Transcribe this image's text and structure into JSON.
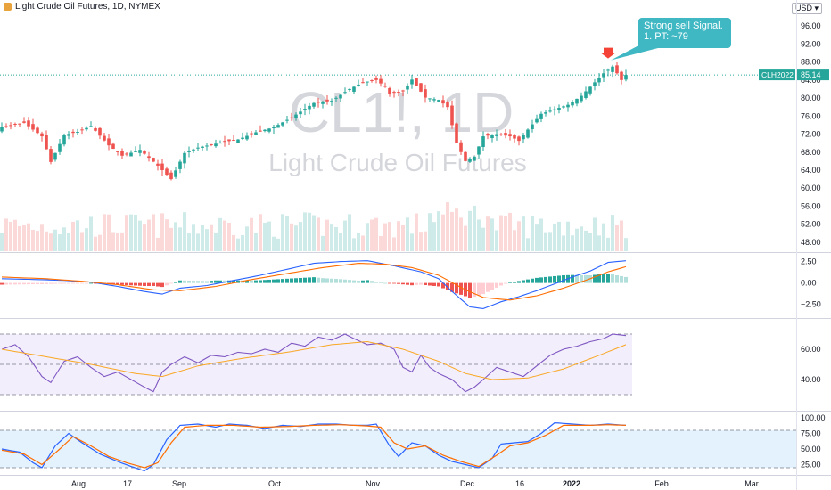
{
  "header": {
    "symbol_title": "Light Crude Oil Futures, 1D, NYMEX",
    "currency": "USD"
  },
  "watermark": {
    "ticker": "CL1!, 1D",
    "name": "Light Crude Oil Futures"
  },
  "annotation": {
    "line1": "Strong sell Signal.",
    "line2": "1. PT: ~79"
  },
  "price_tags": {
    "contract": "CLH2022",
    "last": "85.14"
  },
  "colors": {
    "up": "#26a69a",
    "down": "#ef5350",
    "up_dark": "#131722",
    "macd_line": "#2962ff",
    "signal_line": "#ff6d00",
    "rsi_line": "#7e57c2",
    "rsi_ma": "#f9a825",
    "rsi_band": "#f3eefc",
    "stoch_band": "#e3f2fd",
    "callout": "#3fb8c4",
    "arrow": "#f44336"
  },
  "chart_data": {
    "type": "candlestick",
    "price_axis": {
      "ticks": [
        "96.00",
        "92.00",
        "88.00",
        "84.00",
        "80.00",
        "76.00",
        "72.00",
        "68.00",
        "64.00",
        "60.00",
        "56.00",
        "52.00",
        "48.00"
      ],
      "range": [
        46,
        99
      ]
    },
    "macd_axis": {
      "ticks": [
        "2.50",
        "0.00",
        "−2.50"
      ],
      "range": [
        -4,
        3.4
      ]
    },
    "rsi_axis": {
      "ticks": [
        "60.00",
        "40.00"
      ],
      "range": [
        20,
        80
      ],
      "bands": [
        30,
        70
      ]
    },
    "stoch_axis": {
      "ticks": [
        "100.00",
        "75.00",
        "50.00",
        "25.00"
      ],
      "range": [
        10,
        110
      ],
      "bands": [
        20,
        80
      ]
    },
    "time_labels": [
      "Aug",
      "17",
      "Sep",
      "Oct",
      "Nov",
      "Dec",
      "16",
      "2022",
      "Feb",
      "Mar"
    ],
    "close_anchors": [
      [
        0,
        73.5
      ],
      [
        5,
        74.5
      ],
      [
        9,
        71.5
      ],
      [
        11,
        65.8
      ],
      [
        14,
        71.8
      ],
      [
        17,
        72.5
      ],
      [
        20,
        73.8
      ],
      [
        24,
        69.5
      ],
      [
        27,
        67.2
      ],
      [
        31,
        68.5
      ],
      [
        35,
        65.0
      ],
      [
        38,
        62.0
      ],
      [
        41,
        67.8
      ],
      [
        44,
        69.0
      ],
      [
        49,
        70.1
      ],
      [
        53,
        70.8
      ],
      [
        57,
        72.4
      ],
      [
        61,
        73.5
      ],
      [
        65,
        75.7
      ],
      [
        70,
        78.9
      ],
      [
        74,
        79.4
      ],
      [
        78,
        82.0
      ],
      [
        81,
        83.5
      ],
      [
        84,
        84.0
      ],
      [
        86,
        82.5
      ],
      [
        87,
        81.0
      ],
      [
        90,
        81.5
      ],
      [
        92,
        84.1
      ],
      [
        95,
        80.1
      ],
      [
        98,
        79.6
      ],
      [
        100,
        78.0
      ],
      [
        102,
        70.0
      ],
      [
        104,
        66.0
      ],
      [
        106,
        67.0
      ],
      [
        108,
        71.5
      ],
      [
        111,
        72.0
      ],
      [
        114,
        71.5
      ],
      [
        116,
        70.5
      ],
      [
        118,
        73.0
      ],
      [
        121,
        76.5
      ],
      [
        124,
        77.5
      ],
      [
        127,
        78.5
      ],
      [
        130,
        80.5
      ],
      [
        133,
        83.5
      ],
      [
        135,
        85.5
      ],
      [
        137,
        87.0
      ],
      [
        138,
        85.5
      ],
      [
        139,
        84.0
      ],
      [
        140,
        85.14
      ]
    ],
    "macd_anchors": [
      [
        0,
        0.5
      ],
      [
        8,
        0.4
      ],
      [
        14,
        0.3
      ],
      [
        20,
        0.1
      ],
      [
        26,
        -0.4
      ],
      [
        32,
        -1.0
      ],
      [
        36,
        -1.3
      ],
      [
        40,
        -0.6
      ],
      [
        46,
        -0.3
      ],
      [
        52,
        0.3
      ],
      [
        58,
        0.9
      ],
      [
        64,
        1.6
      ],
      [
        70,
        2.3
      ],
      [
        76,
        2.5
      ],
      [
        82,
        2.6
      ],
      [
        88,
        2.0
      ],
      [
        94,
        1.3
      ],
      [
        98,
        0.5
      ],
      [
        101,
        -1.0
      ],
      [
        105,
        -2.8
      ],
      [
        108,
        -3.0
      ],
      [
        112,
        -2.2
      ],
      [
        116,
        -1.6
      ],
      [
        120,
        -0.9
      ],
      [
        124,
        -0.1
      ],
      [
        128,
        0.7
      ],
      [
        132,
        1.4
      ],
      [
        136,
        2.4
      ],
      [
        140,
        2.6
      ]
    ],
    "signal_anchors": [
      [
        0,
        0.7
      ],
      [
        10,
        0.5
      ],
      [
        18,
        0.2
      ],
      [
        26,
        -0.2
      ],
      [
        34,
        -0.8
      ],
      [
        40,
        -0.9
      ],
      [
        48,
        -0.4
      ],
      [
        56,
        0.4
      ],
      [
        64,
        1.1
      ],
      [
        72,
        1.8
      ],
      [
        80,
        2.3
      ],
      [
        86,
        2.2
      ],
      [
        92,
        1.8
      ],
      [
        98,
        0.9
      ],
      [
        104,
        -0.8
      ],
      [
        108,
        -1.7
      ],
      [
        114,
        -2.0
      ],
      [
        120,
        -1.5
      ],
      [
        126,
        -0.6
      ],
      [
        132,
        0.5
      ],
      [
        136,
        1.3
      ],
      [
        140,
        1.9
      ]
    ],
    "rsi_anchors": [
      [
        0,
        60
      ],
      [
        3,
        63
      ],
      [
        6,
        55
      ],
      [
        9,
        42
      ],
      [
        11,
        38
      ],
      [
        14,
        52
      ],
      [
        17,
        55
      ],
      [
        20,
        48
      ],
      [
        23,
        42
      ],
      [
        26,
        45
      ],
      [
        29,
        40
      ],
      [
        32,
        35
      ],
      [
        34,
        32
      ],
      [
        36,
        45
      ],
      [
        38,
        50
      ],
      [
        41,
        55
      ],
      [
        44,
        51
      ],
      [
        47,
        56
      ],
      [
        50,
        55
      ],
      [
        53,
        58
      ],
      [
        56,
        57
      ],
      [
        59,
        60
      ],
      [
        62,
        58
      ],
      [
        65,
        64
      ],
      [
        68,
        62
      ],
      [
        71,
        68
      ],
      [
        74,
        66
      ],
      [
        77,
        70
      ],
      [
        79,
        67
      ],
      [
        82,
        63
      ],
      [
        85,
        64
      ],
      [
        88,
        60
      ],
      [
        90,
        48
      ],
      [
        92,
        45
      ],
      [
        94,
        56
      ],
      [
        96,
        48
      ],
      [
        98,
        44
      ],
      [
        101,
        40
      ],
      [
        104,
        32
      ],
      [
        106,
        35
      ],
      [
        108,
        40
      ],
      [
        111,
        48
      ],
      [
        114,
        45
      ],
      [
        117,
        42
      ],
      [
        120,
        49
      ],
      [
        123,
        56
      ],
      [
        126,
        60
      ],
      [
        129,
        62
      ],
      [
        132,
        65
      ],
      [
        135,
        67
      ],
      [
        137,
        70
      ],
      [
        140,
        69
      ]
    ],
    "rsi_ma_anchors": [
      [
        0,
        60
      ],
      [
        10,
        55
      ],
      [
        20,
        50
      ],
      [
        30,
        44
      ],
      [
        36,
        42
      ],
      [
        44,
        49
      ],
      [
        54,
        54
      ],
      [
        64,
        58
      ],
      [
        74,
        63
      ],
      [
        82,
        65
      ],
      [
        90,
        60
      ],
      [
        98,
        52
      ],
      [
        104,
        44
      ],
      [
        110,
        40
      ],
      [
        118,
        41
      ],
      [
        126,
        47
      ],
      [
        134,
        56
      ],
      [
        140,
        63
      ]
    ],
    "stoch_k_anchors": [
      [
        0,
        50
      ],
      [
        4,
        45
      ],
      [
        7,
        28
      ],
      [
        9,
        20
      ],
      [
        12,
        55
      ],
      [
        15,
        75
      ],
      [
        18,
        60
      ],
      [
        22,
        42
      ],
      [
        26,
        30
      ],
      [
        29,
        22
      ],
      [
        32,
        15
      ],
      [
        34,
        25
      ],
      [
        37,
        65
      ],
      [
        40,
        88
      ],
      [
        44,
        90
      ],
      [
        48,
        85
      ],
      [
        51,
        90
      ],
      [
        55,
        88
      ],
      [
        59,
        83
      ],
      [
        63,
        88
      ],
      [
        67,
        86
      ],
      [
        71,
        90
      ],
      [
        75,
        90
      ],
      [
        79,
        88
      ],
      [
        82,
        88
      ],
      [
        84,
        90
      ],
      [
        87,
        55
      ],
      [
        89,
        38
      ],
      [
        92,
        60
      ],
      [
        95,
        55
      ],
      [
        98,
        40
      ],
      [
        101,
        30
      ],
      [
        104,
        25
      ],
      [
        107,
        20
      ],
      [
        110,
        35
      ],
      [
        112,
        58
      ],
      [
        115,
        60
      ],
      [
        118,
        62
      ],
      [
        121,
        75
      ],
      [
        124,
        92
      ],
      [
        128,
        90
      ],
      [
        132,
        88
      ],
      [
        136,
        90
      ],
      [
        140,
        88
      ]
    ],
    "stoch_d_anchors": [
      [
        0,
        48
      ],
      [
        5,
        42
      ],
      [
        9,
        25
      ],
      [
        13,
        50
      ],
      [
        16,
        70
      ],
      [
        20,
        55
      ],
      [
        24,
        38
      ],
      [
        28,
        28
      ],
      [
        32,
        20
      ],
      [
        35,
        28
      ],
      [
        38,
        60
      ],
      [
        41,
        85
      ],
      [
        46,
        88
      ],
      [
        52,
        88
      ],
      [
        58,
        85
      ],
      [
        64,
        86
      ],
      [
        70,
        88
      ],
      [
        76,
        89
      ],
      [
        82,
        87
      ],
      [
        85,
        85
      ],
      [
        88,
        60
      ],
      [
        91,
        50
      ],
      [
        95,
        55
      ],
      [
        99,
        40
      ],
      [
        103,
        30
      ],
      [
        107,
        22
      ],
      [
        111,
        40
      ],
      [
        114,
        55
      ],
      [
        118,
        60
      ],
      [
        122,
        72
      ],
      [
        126,
        88
      ],
      [
        132,
        88
      ],
      [
        136,
        89
      ],
      [
        140,
        88
      ]
    ]
  }
}
